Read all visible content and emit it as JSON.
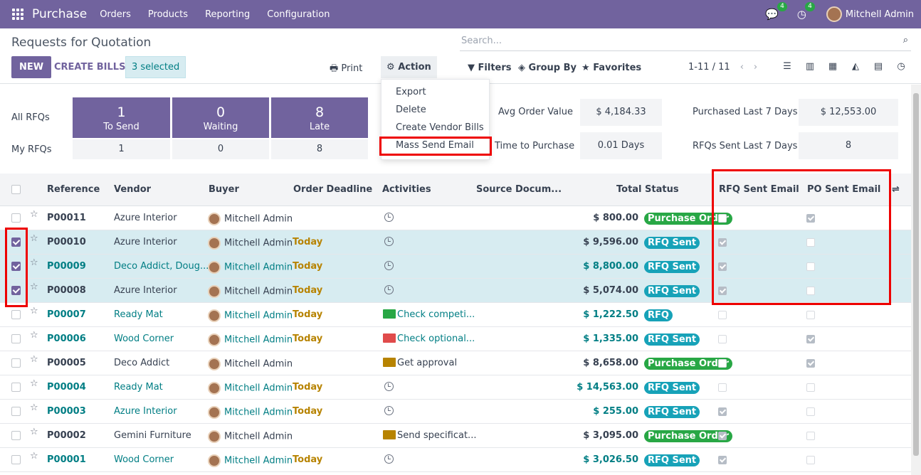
{
  "navbar": {
    "brand": "Purchase",
    "menu": [
      "Orders",
      "Products",
      "Reporting",
      "Configuration"
    ],
    "chat_count": "4",
    "activity_count": "4",
    "user": "Mitchell Admin"
  },
  "control": {
    "title": "Requests for Quotation",
    "new_label": "NEW",
    "create_bills_label": "CREATE BILLS",
    "selected_label": "3 selected",
    "print_label": "Print",
    "action_label": "Action",
    "search_placeholder": "Search...",
    "filters_label": "Filters",
    "groupby_label": "Group By",
    "favorites_label": "Favorites",
    "pager": "1-11 / 11"
  },
  "action_menu": [
    "Export",
    "Delete",
    "Create Vendor Bills",
    "Mass Send Email"
  ],
  "dashboard": {
    "all_rfqs_label": "All RFQs",
    "my_rfqs_label": "My RFQs",
    "tiles": [
      {
        "count": "1",
        "label": "To Send",
        "mine": "1"
      },
      {
        "count": "0",
        "label": "Waiting",
        "mine": "0"
      },
      {
        "count": "8",
        "label": "Late",
        "mine": "8"
      }
    ],
    "avg_order_label": "Avg Order Value",
    "avg_order_value": "$ 4,184.33",
    "time_to_purchase_label": "Time to Purchase",
    "time_to_purchase_value": "0.01 Days",
    "purchased_7_label": "Purchased Last 7 Days",
    "purchased_7_value": "$ 12,553.00",
    "rfq_sent_7_label": "RFQs Sent Last 7 Days",
    "rfq_sent_7_value": "8"
  },
  "table": {
    "columns": [
      "Reference",
      "Vendor",
      "Buyer",
      "Order Deadline",
      "Activities",
      "Source Docum...",
      "Total",
      "Status",
      "RFQ Sent Email",
      "PO Sent Email"
    ],
    "rows": [
      {
        "ref": "P00011",
        "vendor": "Azure Interior",
        "buyer": "Mitchell Admin",
        "deadline": "",
        "activity": "",
        "total": "$ 800.00",
        "status": "Purchase Order",
        "rfq_sent": false,
        "po_sent": true,
        "selected": false,
        "late": false
      },
      {
        "ref": "P00010",
        "vendor": "Azure Interior",
        "buyer": "Mitchell Admin",
        "deadline": "Today",
        "activity": "",
        "total": "$ 9,596.00",
        "status": "RFQ Sent",
        "rfq_sent": true,
        "po_sent": false,
        "selected": true,
        "late": false
      },
      {
        "ref": "P00009",
        "vendor": "Deco Addict, Doug...",
        "buyer": "Mitchell Admin",
        "deadline": "Today",
        "activity": "",
        "total": "$ 8,800.00",
        "status": "RFQ Sent",
        "rfq_sent": true,
        "po_sent": false,
        "selected": true,
        "late": true
      },
      {
        "ref": "P00008",
        "vendor": "Azure Interior",
        "buyer": "Mitchell Admin",
        "deadline": "Today",
        "activity": "",
        "total": "$ 5,074.00",
        "status": "RFQ Sent",
        "rfq_sent": true,
        "po_sent": false,
        "selected": true,
        "late": false
      },
      {
        "ref": "P00007",
        "vendor": "Ready Mat",
        "buyer": "Mitchell Admin",
        "deadline": "Today",
        "activity": "Check competi...",
        "total": "$ 1,222.50",
        "status": "RFQ",
        "rfq_sent": false,
        "po_sent": false,
        "selected": false,
        "late": true
      },
      {
        "ref": "P00006",
        "vendor": "Wood Corner",
        "buyer": "Mitchell Admin",
        "deadline": "Today",
        "activity": "Check optional...",
        "total": "$ 1,335.00",
        "status": "RFQ Sent",
        "rfq_sent": false,
        "po_sent": true,
        "selected": false,
        "late": true
      },
      {
        "ref": "P00005",
        "vendor": "Deco Addict",
        "buyer": "Mitchell Admin",
        "deadline": "",
        "activity": "Get approval",
        "total": "$ 8,658.00",
        "status": "Purchase Order",
        "rfq_sent": false,
        "po_sent": true,
        "selected": false,
        "late": false
      },
      {
        "ref": "P00004",
        "vendor": "Ready Mat",
        "buyer": "Mitchell Admin",
        "deadline": "Today",
        "activity": "",
        "total": "$ 14,563.00",
        "status": "RFQ Sent",
        "rfq_sent": false,
        "po_sent": false,
        "selected": false,
        "late": true
      },
      {
        "ref": "P00003",
        "vendor": "Azure Interior",
        "buyer": "Mitchell Admin",
        "deadline": "Today",
        "activity": "",
        "total": "$ 255.00",
        "status": "RFQ Sent",
        "rfq_sent": true,
        "po_sent": false,
        "selected": false,
        "late": true
      },
      {
        "ref": "P00002",
        "vendor": "Gemini Furniture",
        "buyer": "Mitchell Admin",
        "deadline": "",
        "activity": "Send specificat...",
        "total": "$ 3,095.00",
        "status": "Purchase Order",
        "rfq_sent": true,
        "po_sent": false,
        "selected": false,
        "late": false
      },
      {
        "ref": "P00001",
        "vendor": "Wood Corner",
        "buyer": "Mitchell Admin",
        "deadline": "Today",
        "activity": "",
        "total": "$ 3,026.50",
        "status": "RFQ Sent",
        "rfq_sent": true,
        "po_sent": false,
        "selected": false,
        "late": true
      }
    ]
  },
  "colors": {
    "brand": "#71639e",
    "link": "#017e84",
    "po_badge": "#28a745",
    "sent_badge": "#17a2b8",
    "highlight": "#e00000"
  }
}
